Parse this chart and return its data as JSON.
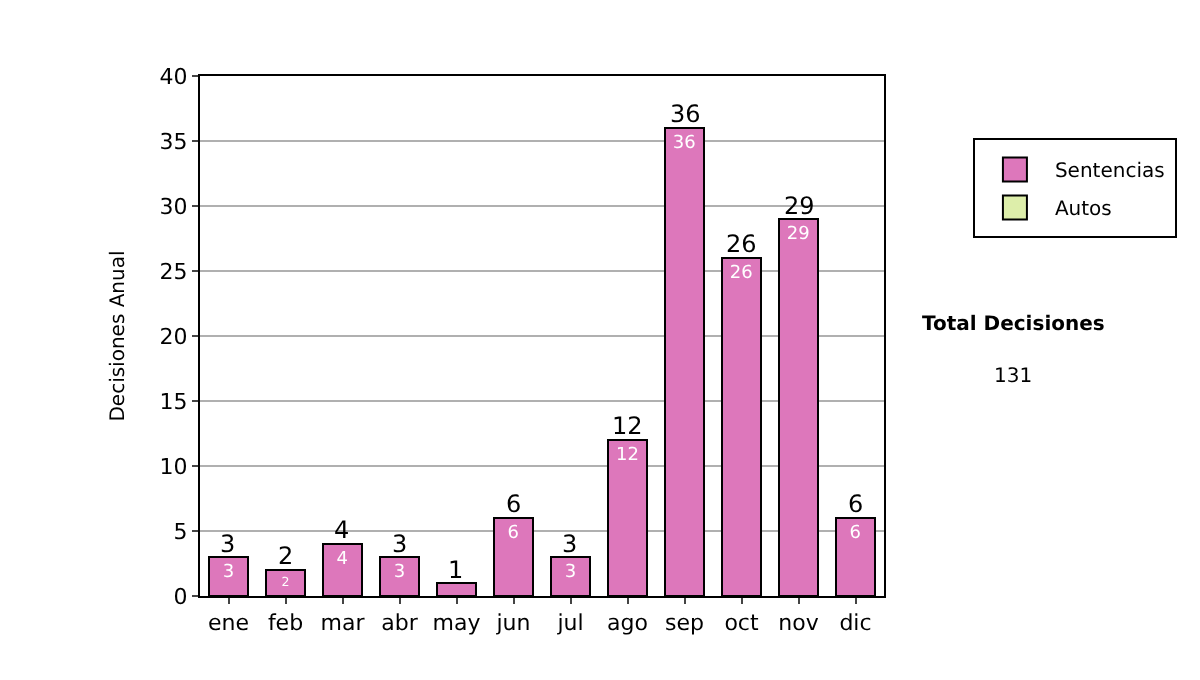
{
  "chart_data": {
    "type": "bar",
    "ylabel": "Decisiones Anual",
    "stacked": true,
    "categories": [
      "ene",
      "feb",
      "mar",
      "abr",
      "may",
      "jun",
      "jul",
      "ago",
      "sep",
      "oct",
      "nov",
      "dic"
    ],
    "series": [
      {
        "name": "Sentencias",
        "color": "#dd77bb",
        "values": [
          3,
          2,
          4,
          3,
          1,
          6,
          3,
          12,
          36,
          26,
          29,
          6
        ],
        "value_labels": [
          "3",
          "2",
          "4",
          "3",
          null,
          "6",
          "3",
          "12",
          "36",
          "26",
          "29",
          "6"
        ]
      },
      {
        "name": "Autos",
        "color": "#ddeeaa",
        "values": [
          null,
          null,
          null,
          null,
          null,
          null,
          null,
          null,
          null,
          null,
          null,
          null
        ]
      }
    ],
    "totals": [
      "3",
      "2",
      "4",
      "3",
      "1",
      "6",
      "3",
      "12",
      "36",
      "26",
      "29",
      "6"
    ],
    "ylim": [
      0,
      40
    ],
    "yticks": [
      0,
      5,
      10,
      15,
      20,
      25,
      30,
      35,
      40
    ],
    "grid": "y",
    "legend": "right",
    "annotations": [
      "Total Decisiones",
      "131"
    ]
  }
}
